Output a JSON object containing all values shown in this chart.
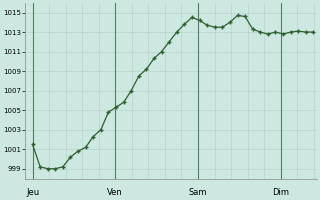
{
  "bg_color": "#cce8e0",
  "plot_bg_color": "#cce8e0",
  "grid_major_color": "#b8d4cc",
  "grid_minor_color": "#c4dcd4",
  "day_line_color": "#5a7a68",
  "line_color": "#2d6030",
  "marker_color": "#2d6030",
  "day_labels": [
    "Jeu",
    "Ven",
    "Sam",
    "Dim"
  ],
  "ylim": [
    998.0,
    1016.0
  ],
  "yticks": [
    999,
    1001,
    1003,
    1005,
    1007,
    1009,
    1011,
    1013,
    1015
  ],
  "y_values": [
    1001.5,
    999.2,
    999.0,
    999.0,
    999.2,
    1000.2,
    1000.8,
    1001.2,
    1002.3,
    1003.0,
    1004.8,
    1005.3,
    1005.8,
    1007.0,
    1008.5,
    1009.2,
    1010.3,
    1011.0,
    1012.0,
    1013.0,
    1013.8,
    1014.5,
    1014.2,
    1013.7,
    1013.5,
    1013.5,
    1014.0,
    1014.7,
    1014.6,
    1013.3,
    1013.0,
    1012.8,
    1013.0,
    1012.8,
    1013.0,
    1013.1,
    1013.0,
    1013.0
  ],
  "figsize": [
    3.2,
    2.0
  ],
  "dpi": 100
}
